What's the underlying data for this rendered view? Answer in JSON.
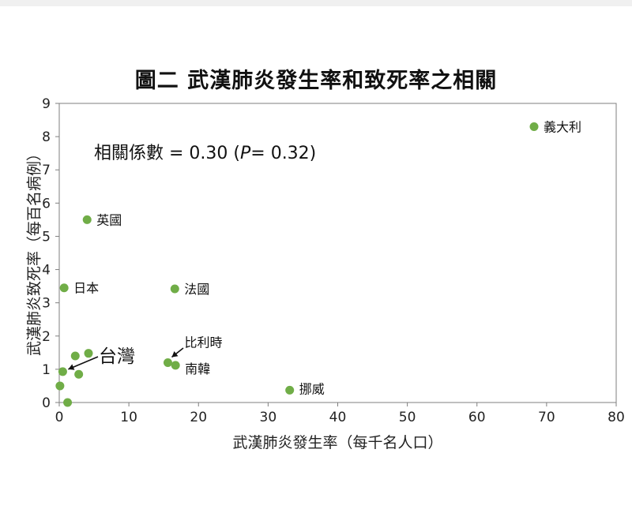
{
  "chart_data": {
    "type": "scatter",
    "title": "圖二  武漢肺炎發生率和致死率之相關",
    "xlabel": "武漢肺炎發生率（每千名人口）",
    "ylabel": "武漢肺炎致死率（每百名病例）",
    "xlim": [
      0,
      80
    ],
    "ylim": [
      0,
      9
    ],
    "xticks": [
      0,
      10,
      20,
      30,
      40,
      50,
      60,
      70,
      80
    ],
    "yticks": [
      0,
      1,
      2,
      3,
      4,
      5,
      6,
      7,
      8,
      9
    ],
    "grid": false,
    "annotation": {
      "prefix": "相關係數 = 0.30 (",
      "italic": "P",
      "suffix": "= 0.32)"
    },
    "marker_color": "#70ad47",
    "points": [
      {
        "x": 68.2,
        "y": 8.3,
        "label": "義大利"
      },
      {
        "x": 4.0,
        "y": 5.5,
        "label": "英國"
      },
      {
        "x": 0.7,
        "y": 3.45,
        "label": "日本"
      },
      {
        "x": 16.6,
        "y": 3.42,
        "label": "法國"
      },
      {
        "x": 15.6,
        "y": 1.2,
        "label": "比利時"
      },
      {
        "x": 16.7,
        "y": 1.12,
        "label": "南韓"
      },
      {
        "x": 33.1,
        "y": 0.37,
        "label": "挪威"
      },
      {
        "x": 0.5,
        "y": 0.93,
        "label": "台灣"
      },
      {
        "x": 2.3,
        "y": 1.4,
        "label": ""
      },
      {
        "x": 4.2,
        "y": 1.48,
        "label": ""
      },
      {
        "x": 2.8,
        "y": 0.85,
        "label": ""
      },
      {
        "x": 0.1,
        "y": 0.5,
        "label": ""
      },
      {
        "x": 1.2,
        "y": 0.0,
        "label": ""
      }
    ]
  }
}
